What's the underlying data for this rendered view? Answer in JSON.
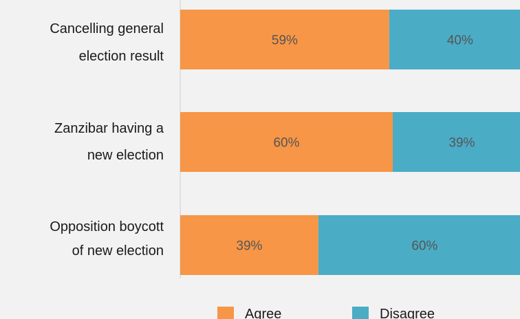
{
  "chart_data": {
    "type": "bar",
    "orientation": "horizontal",
    "stacked": true,
    "categories": [
      [
        "Cancelling general",
        "election result"
      ],
      [
        "Zanzibar having a",
        "new election"
      ],
      [
        "Opposition boycott",
        "of new election"
      ]
    ],
    "series": [
      {
        "name": "Agree",
        "color": "#f79646",
        "values": [
          59,
          60,
          39
        ],
        "labels": [
          "59%",
          "60%",
          "39%"
        ]
      },
      {
        "name": "Disagree",
        "color": "#4bacc6",
        "values": [
          40,
          39,
          60
        ],
        "labels": [
          "40%",
          "39%",
          "60%"
        ]
      }
    ],
    "xlim": [
      0,
      100
    ],
    "grid": false,
    "legend_position": "bottom"
  }
}
